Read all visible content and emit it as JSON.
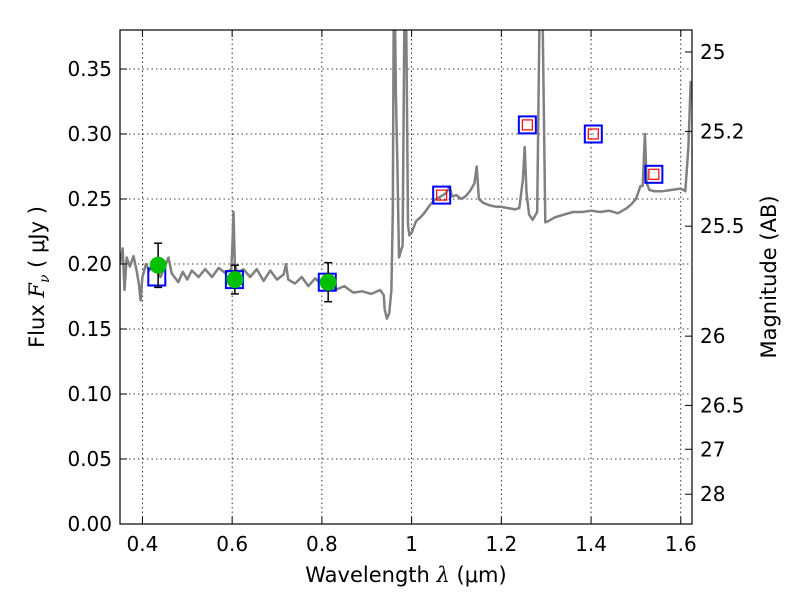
{
  "chart_data": {
    "type": "line",
    "xlabel": {
      "prefix": "Wavelength  ",
      "symbol": "λ",
      "unit": " (μm)"
    },
    "ylabel": {
      "prefix": "Flux  ",
      "symbol": "F",
      "subscript": "ν",
      "unit": "  ( μJy )"
    },
    "ylabel_right": "Magnitude (AB)",
    "xlim": [
      0.35,
      1.625
    ],
    "ylim": [
      0.0,
      0.38
    ],
    "xticks": [
      0.4,
      0.6,
      0.8,
      1.0,
      1.2,
      1.4,
      1.6
    ],
    "xtick_labels": [
      "0.4",
      "0.6",
      "0.8",
      "1",
      "1.2",
      "1.4",
      "1.6"
    ],
    "yticks": [
      0.0,
      0.05,
      0.1,
      0.15,
      0.2,
      0.25,
      0.3,
      0.35
    ],
    "ytick_labels": [
      "0.00",
      "0.05",
      "0.10",
      "0.15",
      "0.20",
      "0.25",
      "0.30",
      "0.35"
    ],
    "right_ticks": [
      {
        "label": "25",
        "flux": 0.3631
      },
      {
        "label": "25.2",
        "flux": 0.302
      },
      {
        "label": "25.5",
        "flux": 0.2291
      },
      {
        "label": "26",
        "flux": 0.1445
      },
      {
        "label": "26.5",
        "flux": 0.0912
      },
      {
        "label": "27",
        "flux": 0.0575
      },
      {
        "label": "28",
        "flux": 0.0229
      }
    ],
    "grid": true,
    "colors": {
      "spectrum": "#808080",
      "observed": "#00c000",
      "model_box": "#0000ff",
      "nir_box": "#ff0000",
      "errorbar": "#000000"
    },
    "series": [
      {
        "name": "model spectrum",
        "type": "line",
        "points": [
          [
            0.35,
            0.2
          ],
          [
            0.356,
            0.212
          ],
          [
            0.36,
            0.18
          ],
          [
            0.365,
            0.205
          ],
          [
            0.372,
            0.198
          ],
          [
            0.38,
            0.206
          ],
          [
            0.387,
            0.195
          ],
          [
            0.392,
            0.185
          ],
          [
            0.396,
            0.172
          ],
          [
            0.4,
            0.19
          ],
          [
            0.408,
            0.2
          ],
          [
            0.415,
            0.195
          ],
          [
            0.425,
            0.198
          ],
          [
            0.44,
            0.19
          ],
          [
            0.45,
            0.198
          ],
          [
            0.458,
            0.205
          ],
          [
            0.465,
            0.193
          ],
          [
            0.48,
            0.186
          ],
          [
            0.49,
            0.194
          ],
          [
            0.5,
            0.188
          ],
          [
            0.51,
            0.195
          ],
          [
            0.525,
            0.19
          ],
          [
            0.54,
            0.196
          ],
          [
            0.555,
            0.19
          ],
          [
            0.57,
            0.197
          ],
          [
            0.585,
            0.193
          ],
          [
            0.598,
            0.196
          ],
          [
            0.6,
            0.21
          ],
          [
            0.603,
            0.24
          ],
          [
            0.606,
            0.2
          ],
          [
            0.612,
            0.193
          ],
          [
            0.625,
            0.196
          ],
          [
            0.64,
            0.19
          ],
          [
            0.655,
            0.196
          ],
          [
            0.67,
            0.187
          ],
          [
            0.685,
            0.195
          ],
          [
            0.7,
            0.188
          ],
          [
            0.715,
            0.192
          ],
          [
            0.72,
            0.2
          ],
          [
            0.725,
            0.188
          ],
          [
            0.74,
            0.185
          ],
          [
            0.755,
            0.19
          ],
          [
            0.77,
            0.183
          ],
          [
            0.785,
            0.189
          ],
          [
            0.8,
            0.184
          ],
          [
            0.815,
            0.186
          ],
          [
            0.83,
            0.18
          ],
          [
            0.85,
            0.183
          ],
          [
            0.87,
            0.178
          ],
          [
            0.89,
            0.179
          ],
          [
            0.91,
            0.177
          ],
          [
            0.93,
            0.18
          ],
          [
            0.938,
            0.176
          ],
          [
            0.94,
            0.165
          ],
          [
            0.945,
            0.158
          ],
          [
            0.95,
            0.162
          ],
          [
            0.955,
            0.18
          ],
          [
            0.958,
            0.24
          ],
          [
            0.96,
            0.39
          ],
          [
            0.963,
            0.39
          ],
          [
            0.965,
            0.33
          ],
          [
            0.968,
            0.28
          ],
          [
            0.972,
            0.205
          ],
          [
            0.976,
            0.21
          ],
          [
            0.98,
            0.214
          ],
          [
            0.984,
            0.39
          ],
          [
            0.988,
            0.39
          ],
          [
            0.992,
            0.23
          ],
          [
            0.995,
            0.222
          ],
          [
            1.0,
            0.224
          ],
          [
            1.01,
            0.233
          ],
          [
            1.02,
            0.236
          ],
          [
            1.03,
            0.24
          ],
          [
            1.04,
            0.245
          ],
          [
            1.05,
            0.249
          ],
          [
            1.06,
            0.251
          ],
          [
            1.075,
            0.254
          ],
          [
            1.085,
            0.259
          ],
          [
            1.09,
            0.252
          ],
          [
            1.1,
            0.253
          ],
          [
            1.11,
            0.25
          ],
          [
            1.12,
            0.252
          ],
          [
            1.13,
            0.256
          ],
          [
            1.14,
            0.262
          ],
          [
            1.145,
            0.275
          ],
          [
            1.15,
            0.25
          ],
          [
            1.16,
            0.247
          ],
          [
            1.175,
            0.245
          ],
          [
            1.19,
            0.244
          ],
          [
            1.2,
            0.244
          ],
          [
            1.215,
            0.243
          ],
          [
            1.23,
            0.242
          ],
          [
            1.24,
            0.243
          ],
          [
            1.248,
            0.265
          ],
          [
            1.252,
            0.29
          ],
          [
            1.256,
            0.255
          ],
          [
            1.262,
            0.238
          ],
          [
            1.27,
            0.234
          ],
          [
            1.28,
            0.24
          ],
          [
            1.285,
            0.39
          ],
          [
            1.292,
            0.39
          ],
          [
            1.298,
            0.232
          ],
          [
            1.305,
            0.233
          ],
          [
            1.32,
            0.236
          ],
          [
            1.34,
            0.238
          ],
          [
            1.36,
            0.24
          ],
          [
            1.38,
            0.24
          ],
          [
            1.4,
            0.241
          ],
          [
            1.42,
            0.24
          ],
          [
            1.44,
            0.241
          ],
          [
            1.46,
            0.239
          ],
          [
            1.48,
            0.243
          ],
          [
            1.49,
            0.246
          ],
          [
            1.5,
            0.25
          ],
          [
            1.505,
            0.255
          ],
          [
            1.51,
            0.26
          ],
          [
            1.515,
            0.26
          ],
          [
            1.52,
            0.3
          ],
          [
            1.524,
            0.262
          ],
          [
            1.53,
            0.257
          ],
          [
            1.54,
            0.256
          ],
          [
            1.56,
            0.256
          ],
          [
            1.58,
            0.257
          ],
          [
            1.6,
            0.258
          ],
          [
            1.61,
            0.256
          ],
          [
            1.617,
            0.29
          ],
          [
            1.622,
            0.34
          ],
          [
            1.625,
            0.33
          ]
        ]
      },
      {
        "name": "model photometry",
        "type": "square_marker",
        "points": [
          [
            0.432,
            0.19
          ],
          [
            0.605,
            0.188
          ],
          [
            0.812,
            0.186
          ],
          [
            1.067,
            0.253
          ],
          [
            1.258,
            0.307
          ],
          [
            1.405,
            0.3
          ],
          [
            1.54,
            0.269
          ]
        ]
      },
      {
        "name": "NIR model inner markers",
        "type": "inner_square",
        "points": [
          [
            1.067,
            0.253
          ],
          [
            1.258,
            0.307
          ],
          [
            1.405,
            0.3
          ],
          [
            1.54,
            0.269
          ]
        ]
      },
      {
        "name": "observed photometry",
        "type": "circle_errorbar",
        "points": [
          {
            "x": 0.435,
            "y": 0.199,
            "yerr": 0.017
          },
          {
            "x": 0.606,
            "y": 0.188,
            "yerr": 0.011
          },
          {
            "x": 0.814,
            "y": 0.186,
            "yerr": 0.015
          }
        ]
      }
    ]
  }
}
